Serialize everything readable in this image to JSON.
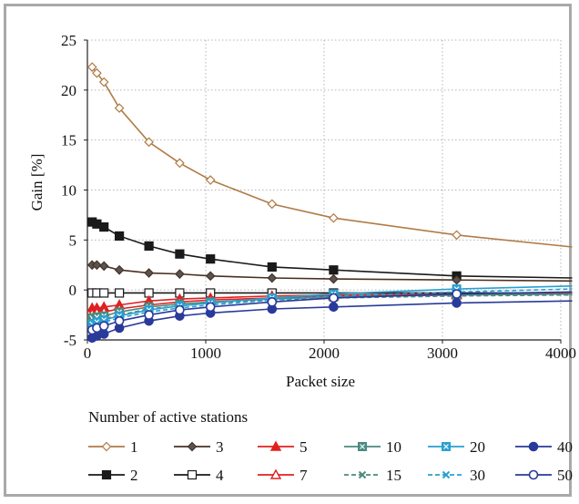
{
  "chart_data": {
    "type": "line",
    "xlabel": "Packet size",
    "ylabel": "Gain [%]",
    "xlim": [
      0,
      4000
    ],
    "ylim": [
      -5,
      25
    ],
    "xticks": [
      0,
      1000,
      2000,
      3000,
      4000
    ],
    "yticks": [
      -5,
      0,
      5,
      10,
      15,
      20,
      25
    ],
    "grid": true,
    "legend_title": "Number of active stations",
    "legend_position": "bottom",
    "series": [
      {
        "name": "1",
        "color": "#b07a45",
        "marker": "diamond-open",
        "dashed": false,
        "x": [
          40,
          80,
          140,
          270,
          520,
          780,
          1040,
          1560,
          2080,
          3120,
          4096
        ],
        "y": [
          22.3,
          21.7,
          20.8,
          18.2,
          14.8,
          12.7,
          11.0,
          8.6,
          7.2,
          5.5,
          4.3
        ]
      },
      {
        "name": "2",
        "color": "#1a1a1a",
        "marker": "square-filled",
        "dashed": false,
        "x": [
          40,
          80,
          140,
          270,
          520,
          780,
          1040,
          1560,
          2080,
          3120,
          4096
        ],
        "y": [
          6.8,
          6.6,
          6.3,
          5.4,
          4.4,
          3.6,
          3.1,
          2.3,
          2.0,
          1.4,
          1.2
        ]
      },
      {
        "name": "3",
        "color": "#4a3020",
        "marker": "diamond-filled",
        "dashed": false,
        "x": [
          40,
          80,
          140,
          270,
          520,
          780,
          1040,
          1560,
          2080,
          3120,
          4096
        ],
        "y": [
          2.5,
          2.5,
          2.4,
          2.0,
          1.7,
          1.6,
          1.4,
          1.2,
          1.1,
          1.0,
          0.9
        ]
      },
      {
        "name": "4",
        "color": "#1a1a1a",
        "marker": "square-open",
        "dashed": false,
        "x": [
          40,
          80,
          140,
          270,
          520,
          780,
          1040,
          1560,
          2080,
          3120,
          4096
        ],
        "y": [
          -0.3,
          -0.3,
          -0.3,
          -0.3,
          -0.3,
          -0.3,
          -0.3,
          -0.3,
          -0.3,
          -0.3,
          -0.3
        ]
      },
      {
        "name": "5",
        "color": "#e02020",
        "marker": "triangle-filled",
        "dashed": false,
        "x": [
          40,
          80,
          140,
          270,
          520,
          780,
          1040,
          1560,
          2080,
          3120,
          4096
        ],
        "y": [
          -1.8,
          -1.8,
          -1.7,
          -1.5,
          -1.1,
          -0.9,
          -0.8,
          -0.6,
          -0.5,
          -0.4,
          -0.3
        ]
      },
      {
        "name": "7",
        "color": "#e02020",
        "marker": "triangle-open",
        "dashed": false,
        "x": [
          40,
          80,
          140,
          270,
          520,
          780,
          1040,
          1560,
          2080,
          3120,
          4096
        ],
        "y": [
          -2.4,
          -2.3,
          -2.2,
          -1.9,
          -1.5,
          -1.2,
          -1.0,
          -0.8,
          -0.6,
          -0.5,
          -0.4
        ]
      },
      {
        "name": "10",
        "color": "#4a8a80",
        "marker": "square-cross",
        "dashed": false,
        "x": [
          40,
          80,
          140,
          270,
          520,
          780,
          1040,
          1560,
          2080,
          3120,
          4096
        ],
        "y": [
          -2.8,
          -2.7,
          -2.6,
          -2.2,
          -1.7,
          -1.4,
          -1.2,
          -0.9,
          -0.7,
          -0.5,
          -0.4
        ]
      },
      {
        "name": "15",
        "color": "#4a8a80",
        "marker": "x",
        "dashed": true,
        "x": [
          40,
          80,
          140,
          270,
          520,
          780,
          1040,
          1560,
          2080,
          3120,
          4096
        ],
        "y": [
          -3.1,
          -3.0,
          -2.9,
          -2.5,
          -1.9,
          -1.6,
          -1.3,
          -1.0,
          -0.8,
          -0.6,
          -0.5
        ]
      },
      {
        "name": "20",
        "color": "#2aa0d0",
        "marker": "square-cross",
        "dashed": false,
        "x": [
          40,
          80,
          140,
          270,
          520,
          780,
          1040,
          1560,
          2080,
          3120,
          4096
        ],
        "y": [
          -3.4,
          -3.2,
          -3.0,
          -2.6,
          -2.0,
          -1.6,
          -1.3,
          -0.8,
          -0.4,
          0.1,
          0.4
        ]
      },
      {
        "name": "30",
        "color": "#2aa0d0",
        "marker": "x",
        "dashed": true,
        "x": [
          40,
          80,
          140,
          270,
          520,
          780,
          1040,
          1560,
          2080,
          3120,
          4096
        ],
        "y": [
          -3.6,
          -3.4,
          -3.2,
          -2.8,
          -2.2,
          -1.8,
          -1.5,
          -1.0,
          -0.6,
          -0.2,
          0.1
        ]
      },
      {
        "name": "40",
        "color": "#2a3a9a",
        "marker": "circle-filled",
        "dashed": false,
        "x": [
          40,
          80,
          140,
          270,
          520,
          780,
          1040,
          1560,
          2080,
          3120,
          4096
        ],
        "y": [
          -4.8,
          -4.6,
          -4.4,
          -3.8,
          -3.1,
          -2.6,
          -2.3,
          -1.9,
          -1.7,
          -1.3,
          -1.1
        ]
      },
      {
        "name": "50",
        "color": "#2a3a9a",
        "marker": "circle-open",
        "dashed": false,
        "x": [
          40,
          80,
          140,
          270,
          520,
          780,
          1040,
          1560,
          2080,
          3120,
          4096
        ],
        "y": [
          -4.0,
          -3.8,
          -3.6,
          -3.1,
          -2.5,
          -2.0,
          -1.7,
          -1.2,
          -0.8,
          -0.4,
          -0.2
        ]
      }
    ],
    "legend_rows": [
      [
        "1",
        "3",
        "5",
        "10",
        "20",
        "40"
      ],
      [
        "2",
        "4",
        "7",
        "15",
        "30",
        "50"
      ]
    ]
  }
}
